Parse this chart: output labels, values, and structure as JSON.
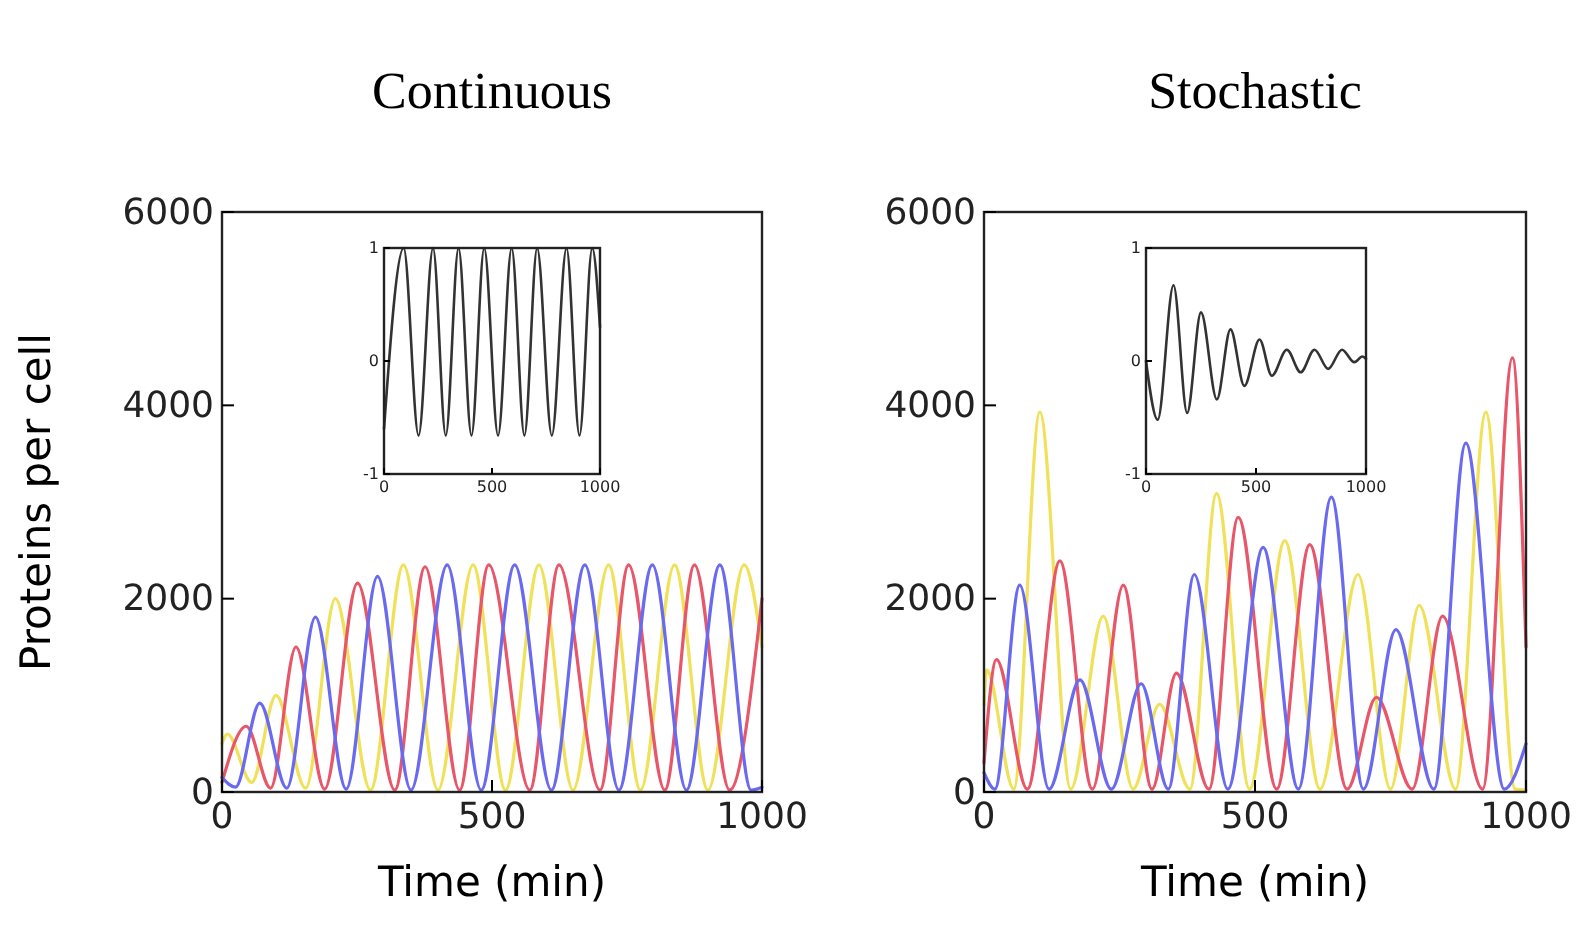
{
  "chart_data": [
    {
      "type": "line",
      "title": "Continuous",
      "xlabel": "Time (min)",
      "ylabel": "Proteins per cell",
      "xlim": [
        0,
        1000
      ],
      "ylim": [
        0,
        6000
      ],
      "xticks": [
        0,
        500,
        1000
      ],
      "yticks": [
        0,
        2000,
        4000,
        6000
      ],
      "series": [
        {
          "color": "#f0e15a",
          "x": [
            0,
            10,
            55,
            100,
            155,
            210,
            275,
            336,
            400,
            465,
            525,
            587,
            650,
            716,
            775,
            838,
            900,
            967,
            1000
          ],
          "values": [
            500,
            600,
            100,
            1000,
            40,
            2000,
            20,
            2350,
            20,
            2350,
            20,
            2350,
            20,
            2350,
            20,
            2350,
            20,
            2350,
            1500
          ]
        },
        {
          "color": "#e8566a",
          "x": [
            0,
            45,
            90,
            137,
            190,
            251,
            320,
            376,
            440,
            494,
            570,
            624,
            700,
            753,
            820,
            875,
            940,
            1000
          ],
          "values": [
            100,
            680,
            40,
            1500,
            30,
            2160,
            20,
            2330,
            20,
            2350,
            20,
            2350,
            20,
            2350,
            20,
            2350,
            20,
            2000
          ]
        },
        {
          "color": "#6a6af0",
          "x": [
            0,
            25,
            70,
            120,
            173,
            230,
            288,
            350,
            417,
            480,
            542,
            610,
            672,
            735,
            797,
            860,
            922,
            980,
            1000
          ],
          "values": [
            150,
            50,
            920,
            40,
            1810,
            30,
            2230,
            20,
            2350,
            20,
            2350,
            20,
            2350,
            20,
            2350,
            20,
            2350,
            20,
            50
          ]
        }
      ]
    },
    {
      "type": "line",
      "xlim": [
        0,
        1000
      ],
      "ylim": [
        -1,
        1
      ],
      "xticks": [
        0,
        500,
        1000
      ],
      "yticks": [
        -1,
        0,
        1
      ],
      "series": [
        {
          "color": "#333333",
          "x": [
            0,
            91,
            160,
            227,
            286,
            345,
            405,
            464,
            528,
            591,
            650,
            709,
            777,
            845,
            905,
            964,
            1000
          ],
          "values": [
            -0.6,
            1,
            -0.66,
            1,
            -0.66,
            1,
            -0.66,
            1,
            -0.66,
            1,
            -0.66,
            1,
            -0.66,
            1,
            -0.66,
            1,
            0.3
          ]
        }
      ]
    },
    {
      "type": "line",
      "title": "Stochastic",
      "xlabel": "Time (min)",
      "xlim": [
        0,
        1000
      ],
      "ylim": [
        0,
        6000
      ],
      "xticks": [
        0,
        500,
        1000
      ],
      "yticks": [
        0,
        2000,
        4000,
        6000
      ],
      "series": [
        {
          "color": "#f0e15a",
          "x": [
            0,
            5,
            55,
            103,
            160,
            220,
            275,
            324,
            380,
            429,
            490,
            555,
            620,
            690,
            750,
            803,
            870,
            926,
            980,
            1000
          ],
          "values": [
            900,
            1260,
            30,
            3930,
            30,
            1820,
            30,
            910,
            30,
            3090,
            30,
            2600,
            30,
            2250,
            30,
            1930,
            30,
            3930,
            30,
            20
          ]
        },
        {
          "color": "#e8566a",
          "x": [
            0,
            23,
            80,
            140,
            200,
            257,
            310,
            355,
            415,
            469,
            540,
            601,
            670,
            724,
            790,
            846,
            920,
            975,
            1000
          ],
          "values": [
            300,
            1370,
            30,
            2390,
            30,
            2140,
            30,
            1230,
            30,
            2840,
            30,
            2560,
            30,
            980,
            30,
            1820,
            30,
            4490,
            1500
          ]
        },
        {
          "color": "#6a6af0",
          "x": [
            0,
            20,
            66,
            120,
            177,
            235,
            290,
            340,
            388,
            450,
            515,
            580,
            641,
            700,
            760,
            830,
            889,
            960,
            1000
          ],
          "values": [
            200,
            30,
            2140,
            30,
            1160,
            30,
            1120,
            30,
            2250,
            30,
            2530,
            30,
            3050,
            30,
            1680,
            30,
            3610,
            30,
            500
          ]
        }
      ]
    },
    {
      "type": "line",
      "xlim": [
        0,
        1000
      ],
      "ylim": [
        -1,
        1
      ],
      "xticks": [
        0,
        500,
        1000
      ],
      "yticks": [
        -1,
        0,
        1
      ],
      "series": [
        {
          "color": "#333333",
          "x": [
            0,
            53,
            125,
            187,
            250,
            322,
            384,
            447,
            516,
            572,
            640,
            703,
            766,
            828,
            891,
            947,
            984,
            1000
          ],
          "values": [
            0,
            -0.52,
            0.67,
            -0.46,
            0.43,
            -0.34,
            0.28,
            -0.22,
            0.19,
            -0.13,
            0.1,
            -0.1,
            0.1,
            -0.07,
            0.1,
            -0.01,
            0.04,
            0.02
          ]
        }
      ]
    }
  ]
}
